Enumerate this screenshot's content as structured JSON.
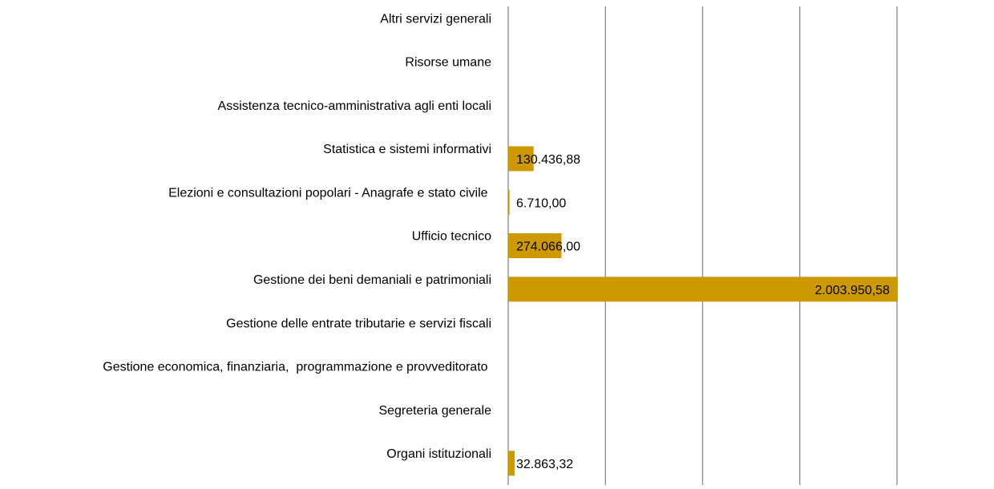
{
  "chart_data": {
    "type": "hbar",
    "categories": [
      "Altri servizi generali",
      "Risorse umane",
      "Assistenza tecnico-amministrativa agli enti locali",
      "Statistica e sistemi informativi",
      "Elezioni e consultazioni popolari - Anagrafe e stato civile ",
      "Ufficio tecnico",
      "Gestione dei beni demaniali e patrimoniali",
      "Gestione delle entrate tributarie e servizi fiscali",
      "Gestione economica, finanziaria,  programmazione e provveditorato ",
      "Segreteria generale",
      "Organi istituzionali"
    ],
    "values": [
      null,
      null,
      null,
      130436.88,
      6710,
      274066,
      2003950.58,
      null,
      null,
      null,
      32863.32
    ],
    "value_labels": [
      null,
      null,
      null,
      "130.436,88",
      "6.710,00",
      "274.066,00",
      "2.003.950,58",
      null,
      null,
      null,
      "32.863,32"
    ],
    "color": "#cc9900",
    "xlim": [
      0,
      2000000
    ],
    "xticks": [
      0,
      500000,
      1000000,
      1500000,
      2000000
    ],
    "grid": true
  }
}
